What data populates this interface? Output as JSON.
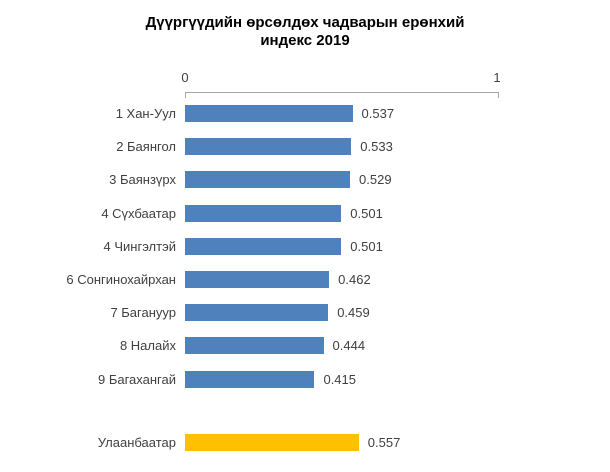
{
  "colors": {
    "district_bar": "#4f81bd",
    "city_bar": "#ffc000",
    "axis_line": "#a6a6a6",
    "text": "#404040",
    "title_text": "#000000",
    "background": "#ffffff"
  },
  "chart_data": {
    "type": "bar",
    "orientation": "horizontal",
    "title": "Дүүргүүдийн өрсөлдөх чадварын ерөнхий индекс 2019",
    "title_line_1": "Дүүргүүдийн өрсөлдөх чадварын ерөнхий",
    "title_line_2": "индекс 2019",
    "xlabel": "",
    "ylabel": "",
    "xlim": [
      0,
      1
    ],
    "axis_tick_labels": {
      "min": "0",
      "max": "1"
    },
    "grid": false,
    "legend": false,
    "categories": [
      "1 Хан-Уул",
      "2 Баянгол",
      "3 Баянзүрх",
      "4 Сүхбаатар",
      "4 Чингэлтэй",
      "6 Сонгинохайрхан",
      "7 Багануур",
      "8 Налайх",
      "9 Багахангай",
      "Улаанбаатар"
    ],
    "values": [
      0.537,
      0.533,
      0.529,
      0.501,
      0.501,
      0.462,
      0.459,
      0.444,
      0.415,
      0.557
    ],
    "rows": [
      {
        "label": "1 Хан-Уул",
        "value": 0.537,
        "display": "0.537",
        "group": "district"
      },
      {
        "label": "2 Баянгол",
        "value": 0.533,
        "display": "0.533",
        "group": "district"
      },
      {
        "label": "3 Баянзүрх",
        "value": 0.529,
        "display": "0.529",
        "group": "district"
      },
      {
        "label": "4 Сүхбаатар",
        "value": 0.501,
        "display": "0.501",
        "group": "district"
      },
      {
        "label": "4 Чингэлтэй",
        "value": 0.501,
        "display": "0.501",
        "group": "district"
      },
      {
        "label": "6 Сонгинохайрхан",
        "value": 0.462,
        "display": "0.462",
        "group": "district"
      },
      {
        "label": "7 Багануур",
        "value": 0.459,
        "display": "0.459",
        "group": "district"
      },
      {
        "label": "8 Налайх",
        "value": 0.444,
        "display": "0.444",
        "group": "district"
      },
      {
        "label": "9 Багахангай",
        "value": 0.415,
        "display": "0.415",
        "group": "district"
      },
      {
        "label": "Улаанбаатар",
        "value": 0.557,
        "display": "0.557",
        "group": "city"
      }
    ]
  }
}
